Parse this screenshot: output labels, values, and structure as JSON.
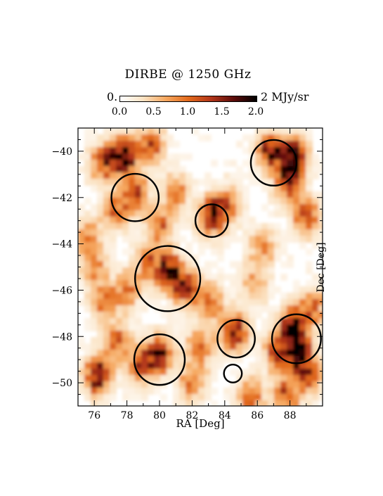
{
  "chart_data": {
    "type": "heatmap",
    "title": "DIRBE @ 1250 GHz",
    "xlabel": "RA [Deg]",
    "ylabel": "Dec [Deg]",
    "xlim": [
      75,
      90
    ],
    "ylim": [
      -51,
      -39
    ],
    "x_ticks": [
      76,
      78,
      80,
      82,
      84,
      86,
      88
    ],
    "y_ticks": [
      -40,
      -42,
      -44,
      -46,
      -48,
      -50
    ],
    "colorbar": {
      "min_label": "0.",
      "max_label": "2 MJy/sr",
      "ticks": [
        "0.0",
        "0.5",
        "1.0",
        "1.5",
        "2.0"
      ],
      "range": [
        0,
        2
      ],
      "unit": "MJy/sr",
      "colormap": [
        "#ffffff",
        "#fbe3c4",
        "#f6a860",
        "#e26a1c",
        "#b2361a",
        "#5c0c0a",
        "#000000"
      ]
    },
    "circles": [
      {
        "ra": 78.5,
        "dec": -42.0,
        "r": 1.45
      },
      {
        "ra": 83.2,
        "dec": -43.0,
        "r": 1.0
      },
      {
        "ra": 80.5,
        "dec": -45.5,
        "r": 2.0
      },
      {
        "ra": 87.0,
        "dec": -40.5,
        "r": 1.4
      },
      {
        "ra": 84.7,
        "dec": -48.1,
        "r": 1.15
      },
      {
        "ra": 88.4,
        "dec": -48.1,
        "r": 1.5
      },
      {
        "ra": 80.0,
        "dec": -49.0,
        "r": 1.55
      },
      {
        "ra": 84.5,
        "dec": -49.6,
        "r": 0.55
      }
    ],
    "emission_blobs": [
      {
        "ra": 77.8,
        "dec": -40.2,
        "v": 2.0
      },
      {
        "ra": 76.5,
        "dec": -40.5,
        "v": 1.2
      },
      {
        "ra": 79.5,
        "dec": -39.8,
        "v": 1.1
      },
      {
        "ra": 78.5,
        "dec": -41.8,
        "v": 1.3
      },
      {
        "ra": 77.3,
        "dec": -42.6,
        "v": 1.0
      },
      {
        "ra": 81.0,
        "dec": -41.8,
        "v": 0.9
      },
      {
        "ra": 80.0,
        "dec": -43.2,
        "v": 1.0
      },
      {
        "ra": 83.2,
        "dec": -42.8,
        "v": 1.6
      },
      {
        "ra": 84.2,
        "dec": -42.3,
        "v": 0.9
      },
      {
        "ra": 86.8,
        "dec": -40.0,
        "v": 1.6
      },
      {
        "ra": 88.2,
        "dec": -40.3,
        "v": 2.0
      },
      {
        "ra": 87.8,
        "dec": -41.4,
        "v": 1.1
      },
      {
        "ra": 89.0,
        "dec": -42.8,
        "v": 1.3
      },
      {
        "ra": 86.3,
        "dec": -44.2,
        "v": 0.8
      },
      {
        "ra": 80.6,
        "dec": -45.2,
        "v": 1.7
      },
      {
        "ra": 79.3,
        "dec": -44.8,
        "v": 1.0
      },
      {
        "ra": 81.7,
        "dec": -45.9,
        "v": 1.4
      },
      {
        "ra": 76.6,
        "dec": -46.5,
        "v": 0.9
      },
      {
        "ra": 78.0,
        "dec": -46.0,
        "v": 0.9
      },
      {
        "ra": 83.2,
        "dec": -46.5,
        "v": 0.9
      },
      {
        "ra": 84.6,
        "dec": -47.8,
        "v": 1.6
      },
      {
        "ra": 82.5,
        "dec": -48.5,
        "v": 1.0
      },
      {
        "ra": 88.2,
        "dec": -47.6,
        "v": 2.0
      },
      {
        "ra": 88.5,
        "dec": -48.8,
        "v": 1.8
      },
      {
        "ra": 87.2,
        "dec": -48.7,
        "v": 1.1
      },
      {
        "ra": 89.4,
        "dec": -46.8,
        "v": 1.0
      },
      {
        "ra": 80.0,
        "dec": -48.8,
        "v": 1.6
      },
      {
        "ra": 78.8,
        "dec": -49.2,
        "v": 1.2
      },
      {
        "ra": 76.2,
        "dec": -49.7,
        "v": 1.7
      },
      {
        "ra": 77.3,
        "dec": -48.2,
        "v": 1.0
      },
      {
        "ra": 82.0,
        "dec": -50.0,
        "v": 0.9
      },
      {
        "ra": 85.6,
        "dec": -50.6,
        "v": 1.0
      },
      {
        "ra": 87.8,
        "dec": -50.5,
        "v": 1.2
      },
      {
        "ra": 89.2,
        "dec": -49.7,
        "v": 1.0
      },
      {
        "ra": 75.6,
        "dec": -43.7,
        "v": 0.9
      },
      {
        "ra": 76.0,
        "dec": -45.0,
        "v": 0.8
      },
      {
        "ra": 85.8,
        "dec": -45.8,
        "v": 0.7
      }
    ]
  }
}
